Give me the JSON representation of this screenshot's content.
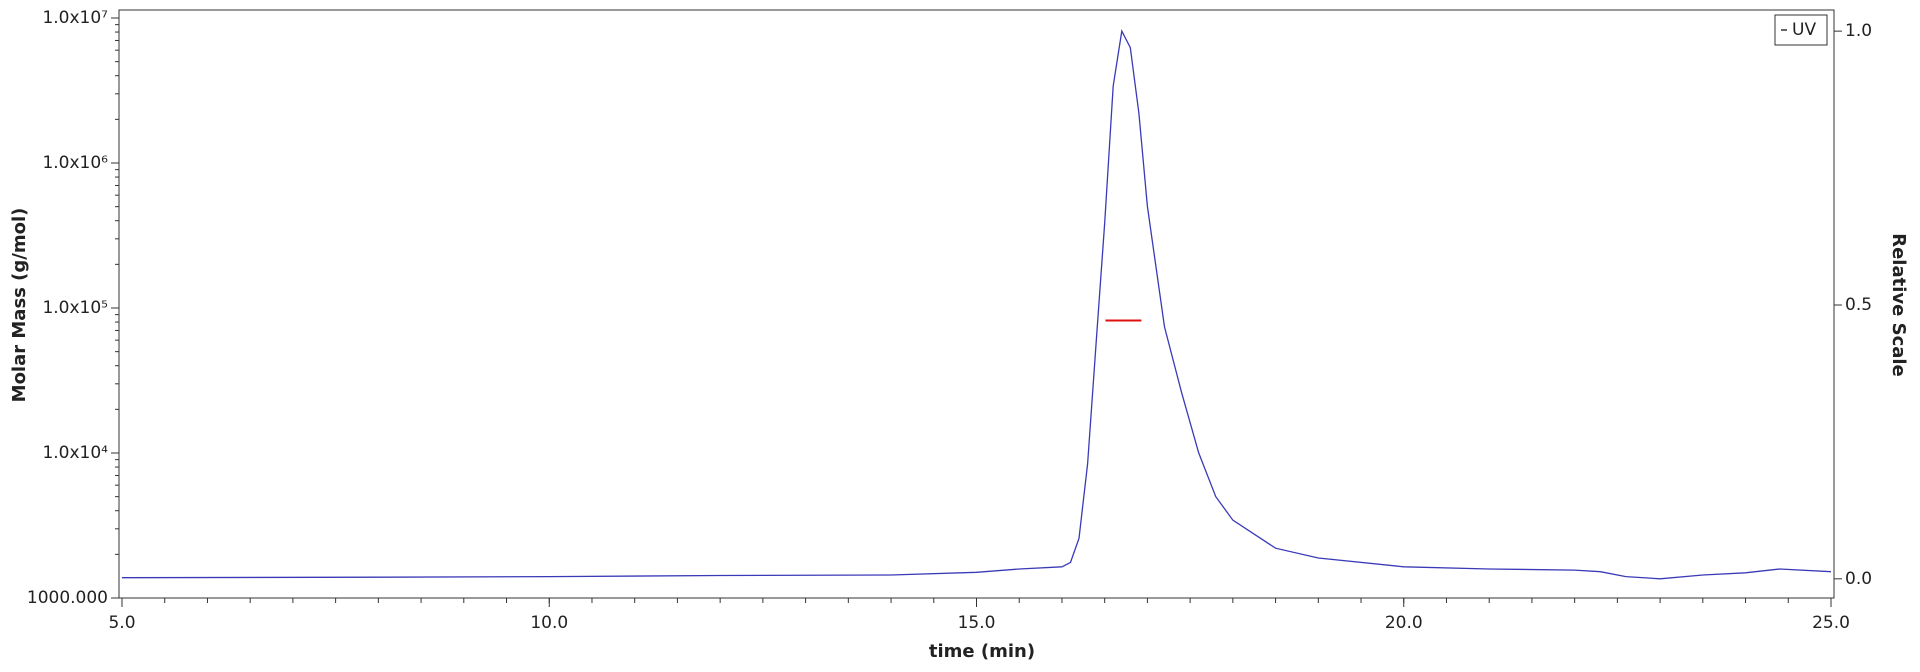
{
  "chart_data": {
    "type": "line",
    "xlabel": "time (min)",
    "ylabel": "Molar Mass (g/mol)",
    "y2label": "Relative Scale",
    "xlim": [
      5,
      25
    ],
    "xticks": [
      {
        "value": 5,
        "label": "5.0"
      },
      {
        "value": 10,
        "label": "10.0"
      },
      {
        "value": 15,
        "label": "15.0"
      },
      {
        "value": 20,
        "label": "20.0"
      },
      {
        "value": 25,
        "label": "25.0"
      }
    ],
    "ylim": [
      1000,
      10000000
    ],
    "yscale": "log",
    "yticks": [
      {
        "value": 1000,
        "label": "1000.000"
      },
      {
        "value": 10000,
        "label": "1.0x10⁴"
      },
      {
        "value": 100000,
        "label": "1.0x10⁵"
      },
      {
        "value": 1000000,
        "label": "1.0x10⁶"
      },
      {
        "value": 10000000,
        "label": "1.0x10⁷"
      }
    ],
    "y2lim": [
      -0.035,
      1.024
    ],
    "y2ticks": [
      {
        "value": 0,
        "label": "0.0"
      },
      {
        "value": 0.5,
        "label": "0.5"
      },
      {
        "value": 1,
        "label": "1.0"
      }
    ],
    "grid": false,
    "legend": "upper right",
    "series": [
      {
        "name": "UV",
        "color": "#3a3ab8",
        "axis": "y2",
        "x": [
          5.0,
          8.0,
          10.0,
          12.0,
          14.0,
          15.0,
          15.5,
          16.0,
          16.1,
          16.2,
          16.3,
          16.4,
          16.5,
          16.6,
          16.7,
          16.8,
          16.9,
          17.0,
          17.2,
          17.4,
          17.6,
          17.8,
          18.0,
          18.5,
          19.0,
          20.0,
          21.0,
          22.0,
          22.3,
          22.6,
          23.0,
          23.5,
          24.0,
          24.4,
          25.0
        ],
        "values": [
          0.002,
          0.003,
          0.004,
          0.006,
          0.007,
          0.012,
          0.018,
          0.022,
          0.03,
          0.074,
          0.21,
          0.43,
          0.65,
          0.9,
          1.0,
          0.97,
          0.85,
          0.68,
          0.46,
          0.34,
          0.23,
          0.15,
          0.107,
          0.056,
          0.038,
          0.022,
          0.018,
          0.016,
          0.013,
          0.004,
          0.0,
          0.007,
          0.011,
          0.018,
          0.013
        ]
      },
      {
        "color": "#e01010",
        "x": [
          16.51,
          16.93
        ],
        "values": [
          82000,
          82000
        ]
      }
    ]
  }
}
